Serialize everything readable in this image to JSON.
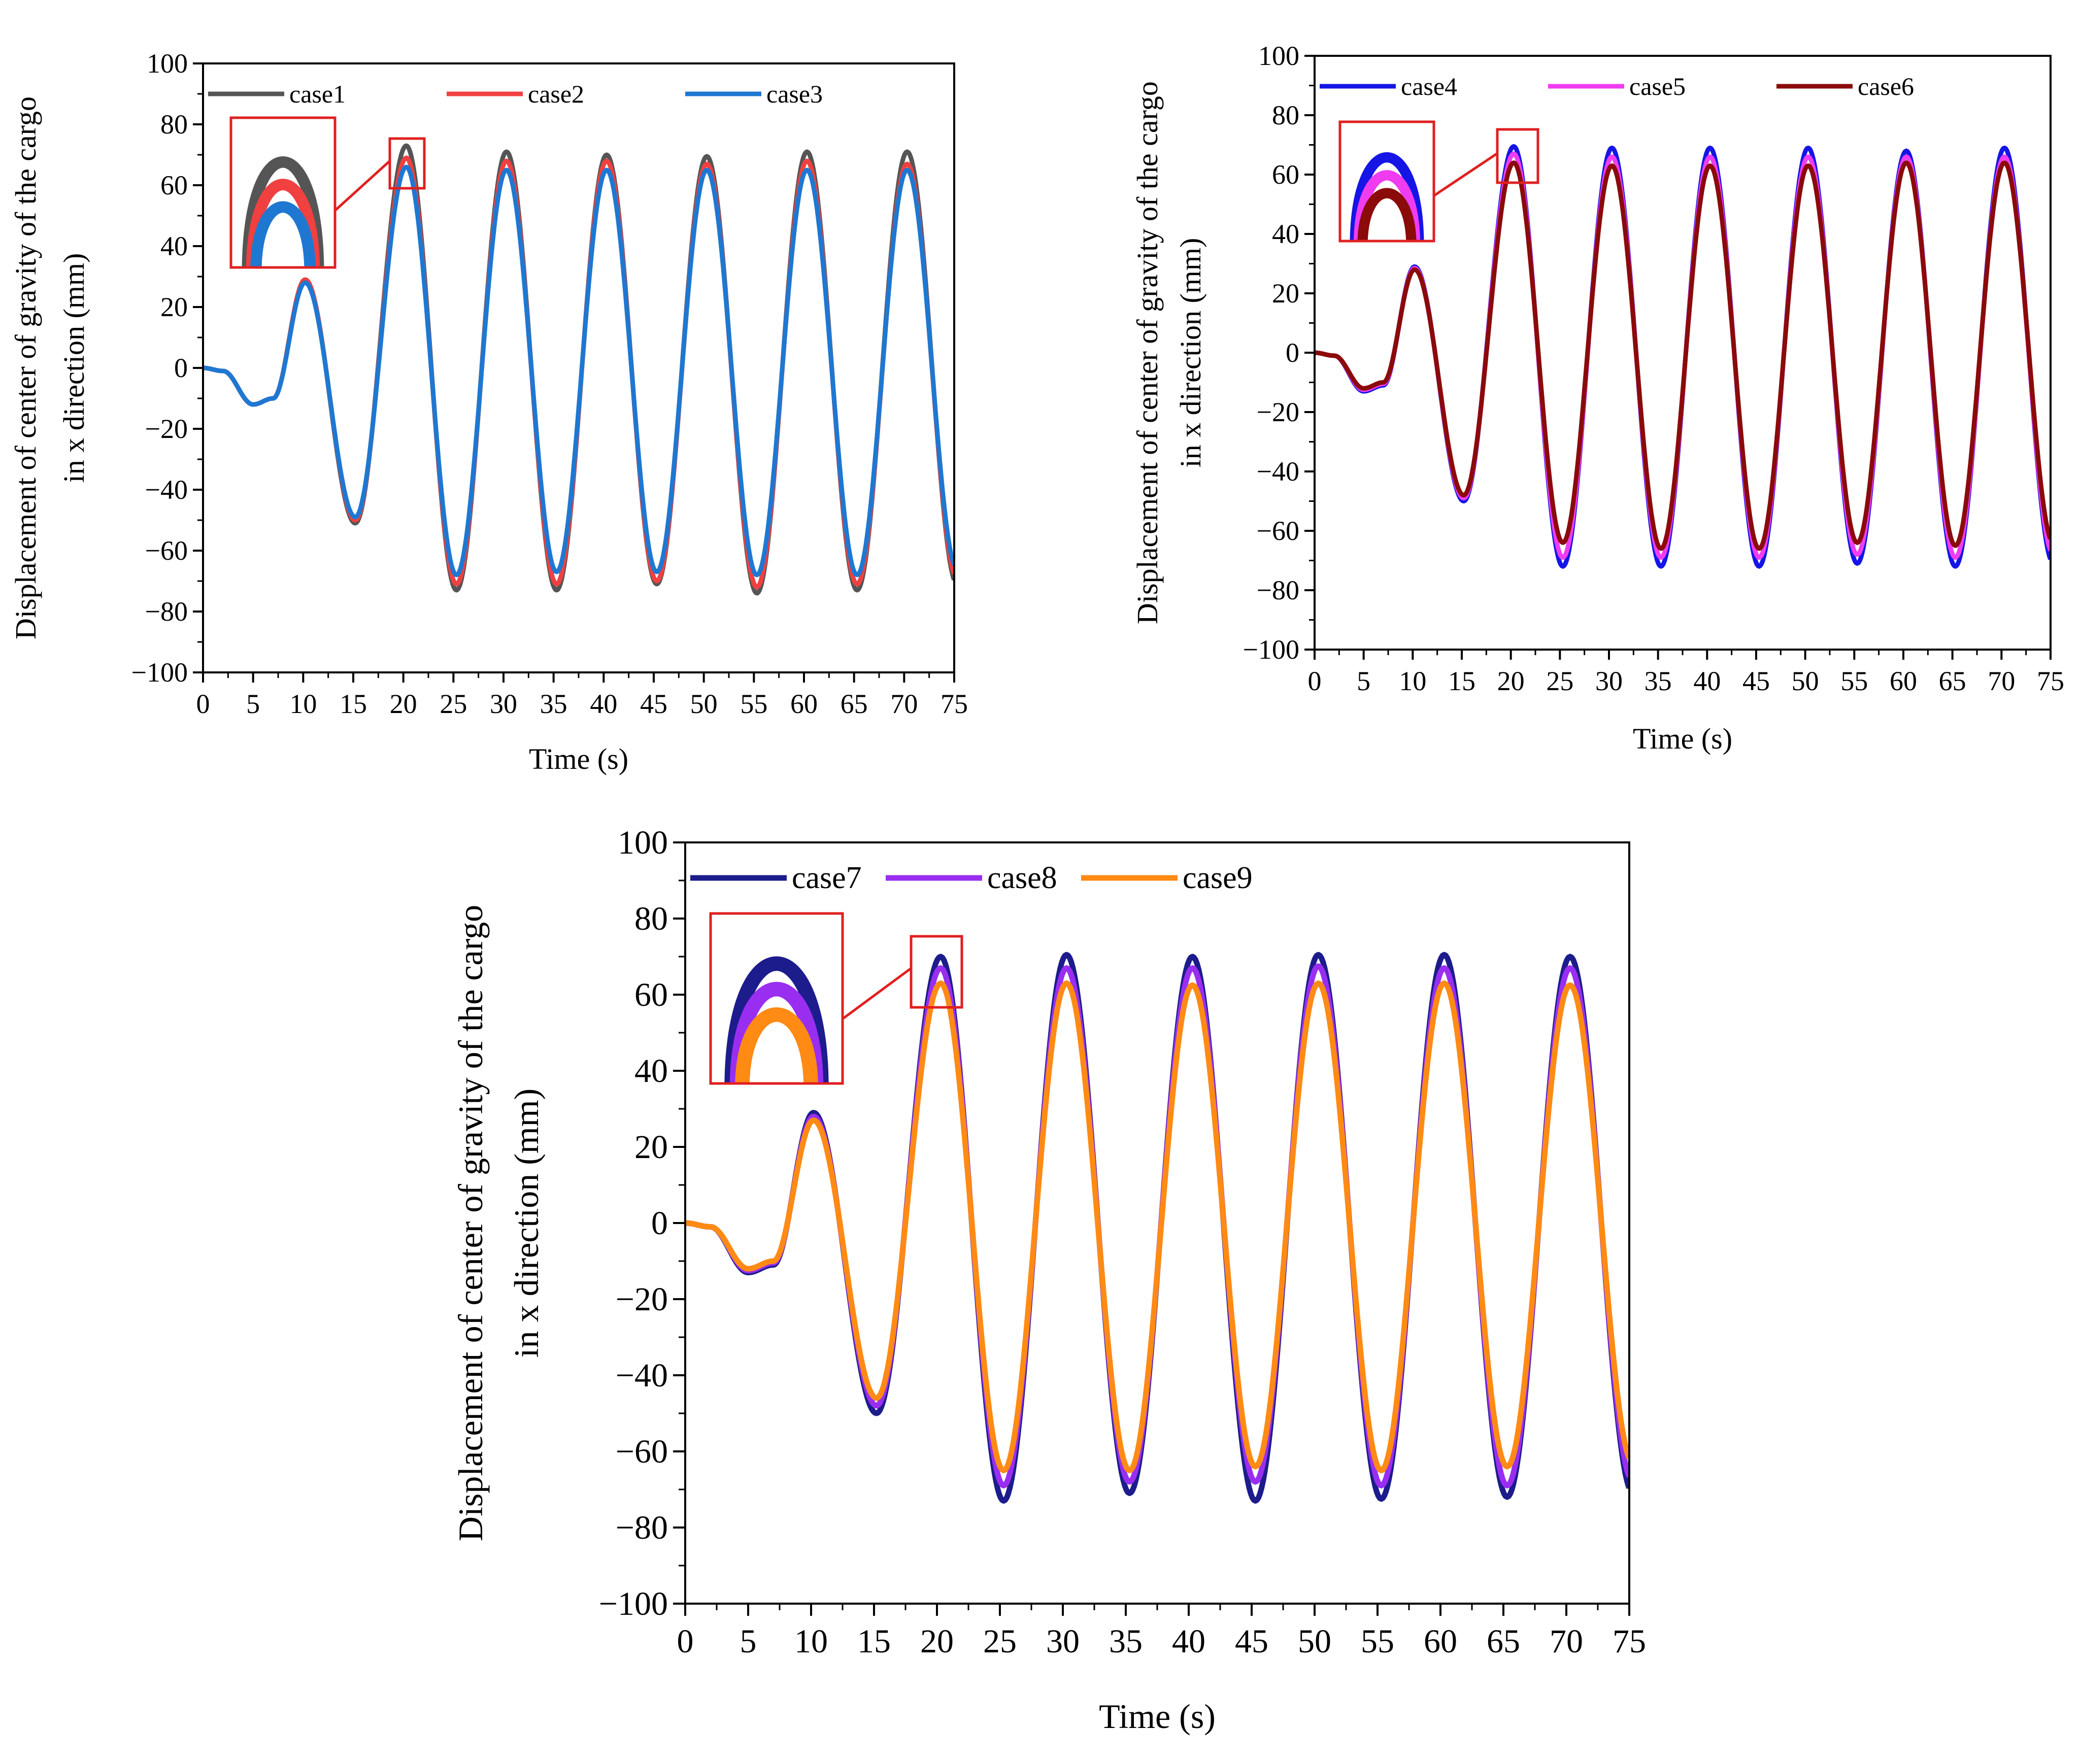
{
  "chart_data": [
    {
      "type": "line",
      "xlabel": "Time (s)",
      "ylabel_line1": "Displacement of center of gravity of the cargo",
      "ylabel_line2": "in x direction (mm)",
      "xlim": [
        0,
        75
      ],
      "ylim": [
        -100,
        100
      ],
      "x_ticks": [
        0,
        5,
        10,
        15,
        20,
        25,
        30,
        35,
        40,
        45,
        50,
        55,
        60,
        65,
        70,
        75
      ],
      "y_ticks": [
        -100,
        -80,
        -60,
        -40,
        -20,
        0,
        20,
        40,
        60,
        80,
        100
      ],
      "legend_position": "top-left",
      "inset": "zoom of first peak near t = 20 s",
      "series": [
        {
          "name": "case1",
          "color": "#555555",
          "first_min": -12,
          "second_max": 29,
          "second_min": -51,
          "peaks": [
            73,
            71,
            70,
            69.5,
            71,
            71
          ],
          "troughs": [
            -73,
            -73,
            -71,
            -74,
            -73,
            -71
          ]
        },
        {
          "name": "case2",
          "color": "#f04040",
          "first_min": -12,
          "second_max": 29,
          "second_min": -50,
          "peaks": [
            69,
            68,
            68,
            67,
            68,
            67
          ],
          "troughs": [
            -71,
            -71,
            -70,
            -72,
            -71,
            -69
          ]
        },
        {
          "name": "case3",
          "color": "#1e78d2",
          "first_min": -12,
          "second_max": 28,
          "second_min": -49,
          "peaks": [
            66,
            65,
            65,
            65,
            65,
            65
          ],
          "troughs": [
            -68,
            -67,
            -67,
            -68,
            -68,
            -66
          ]
        }
      ]
    },
    {
      "type": "line",
      "xlabel": "Time (s)",
      "ylabel_line1": "Displacement of center of gravity of the cargo",
      "ylabel_line2": "in x direction (mm)",
      "xlim": [
        0,
        75
      ],
      "ylim": [
        -100,
        100
      ],
      "x_ticks": [
        0,
        5,
        10,
        15,
        20,
        25,
        30,
        35,
        40,
        45,
        50,
        55,
        60,
        65,
        70,
        75
      ],
      "y_ticks": [
        -100,
        -80,
        -60,
        -40,
        -20,
        0,
        20,
        40,
        60,
        80,
        100
      ],
      "legend_position": "top-left",
      "inset": "zoom of first peak near t = 20 s",
      "series": [
        {
          "name": "case4",
          "color": "#1515e6",
          "first_min": -13,
          "second_max": 29,
          "second_min": -50,
          "peaks": [
            69.5,
            69,
            69,
            69,
            68,
            69
          ],
          "troughs": [
            -72,
            -72,
            -72,
            -71,
            -72,
            -71
          ]
        },
        {
          "name": "case5",
          "color": "#f03cf0",
          "first_min": -12.5,
          "second_max": 28.5,
          "second_min": -49,
          "peaks": [
            67,
            66,
            66,
            66,
            66,
            66
          ],
          "troughs": [
            -69,
            -69,
            -69,
            -68,
            -69,
            -68
          ]
        },
        {
          "name": "case6",
          "color": "#8b0a0a",
          "first_min": -12,
          "second_max": 28,
          "second_min": -48,
          "peaks": [
            64,
            63,
            63,
            63,
            64,
            64
          ],
          "troughs": [
            -64,
            -66,
            -66,
            -64,
            -65,
            -64
          ]
        }
      ]
    },
    {
      "type": "line",
      "xlabel": "Time (s)",
      "ylabel_line1": "Displacement of center of gravity of the cargo",
      "ylabel_line2": "in x direction (mm)",
      "xlim": [
        0,
        75
      ],
      "ylim": [
        -100,
        100
      ],
      "x_ticks": [
        0,
        5,
        10,
        15,
        20,
        25,
        30,
        35,
        40,
        45,
        50,
        55,
        60,
        65,
        70,
        75
      ],
      "y_ticks": [
        -100,
        -80,
        -60,
        -40,
        -20,
        0,
        20,
        40,
        60,
        80,
        100
      ],
      "legend_position": "top-left",
      "inset": "zoom of first peak near t = 20 s",
      "series": [
        {
          "name": "case7",
          "color": "#1c1c8c",
          "first_min": -13,
          "second_max": 29,
          "second_min": -50,
          "peaks": [
            70,
            70.5,
            70,
            70.5,
            70.5,
            70
          ],
          "troughs": [
            -73,
            -71,
            -73,
            -72.5,
            -72,
            -71
          ]
        },
        {
          "name": "case8",
          "color": "#9a2ef0",
          "first_min": -12.5,
          "second_max": 28,
          "second_min": -48,
          "peaks": [
            67,
            67,
            67,
            67.5,
            67,
            67
          ],
          "troughs": [
            -69,
            -68,
            -68,
            -69,
            -69,
            -68
          ]
        },
        {
          "name": "case9",
          "color": "#ff8a14",
          "first_min": -12,
          "second_max": 27,
          "second_min": -46,
          "peaks": [
            63,
            63,
            62.5,
            63,
            63,
            62.5
          ],
          "troughs": [
            -65,
            -65,
            -64,
            -65,
            -64,
            -63
          ]
        }
      ]
    }
  ]
}
